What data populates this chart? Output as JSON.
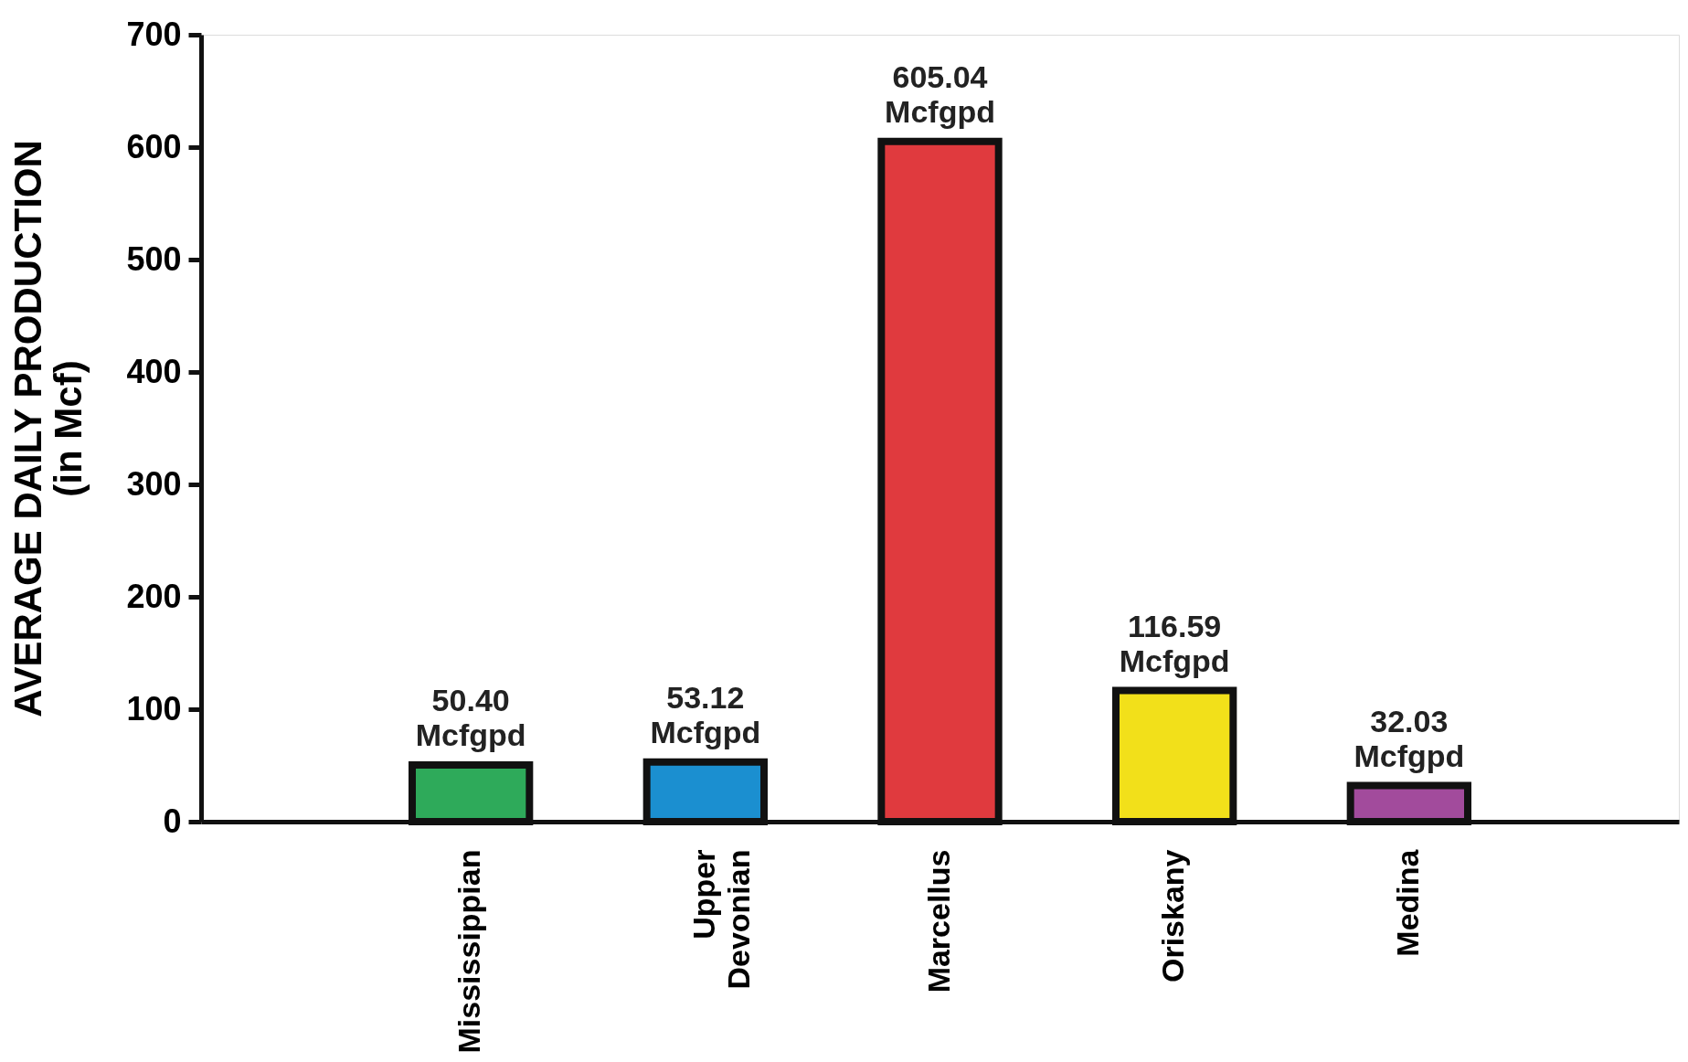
{
  "chart_data": {
    "type": "bar",
    "ylabel": "AVERAGE DAILY PRODUCTION\n(in Mcf)",
    "categories": [
      "Mississippian",
      "Upper Devonian",
      "Marcellus",
      "Oriskany",
      "Medina"
    ],
    "values": [
      50.4,
      53.12,
      605.04,
      116.59,
      32.03
    ],
    "colors": [
      "#2eaa5a",
      "#1b8fd0",
      "#e03a3e",
      "#f2e01a",
      "#a24b9c"
    ],
    "value_labels": [
      "50.40 Mcfgpd",
      "53.12 Mcfgpd",
      "605.04 Mcfgpd",
      "116.59 Mcfgpd",
      "32.03 Mcfgpd"
    ],
    "ylim": [
      0,
      700
    ],
    "yticks": [
      0,
      100,
      200,
      300,
      400,
      500,
      600,
      700
    ],
    "grid": false
  }
}
